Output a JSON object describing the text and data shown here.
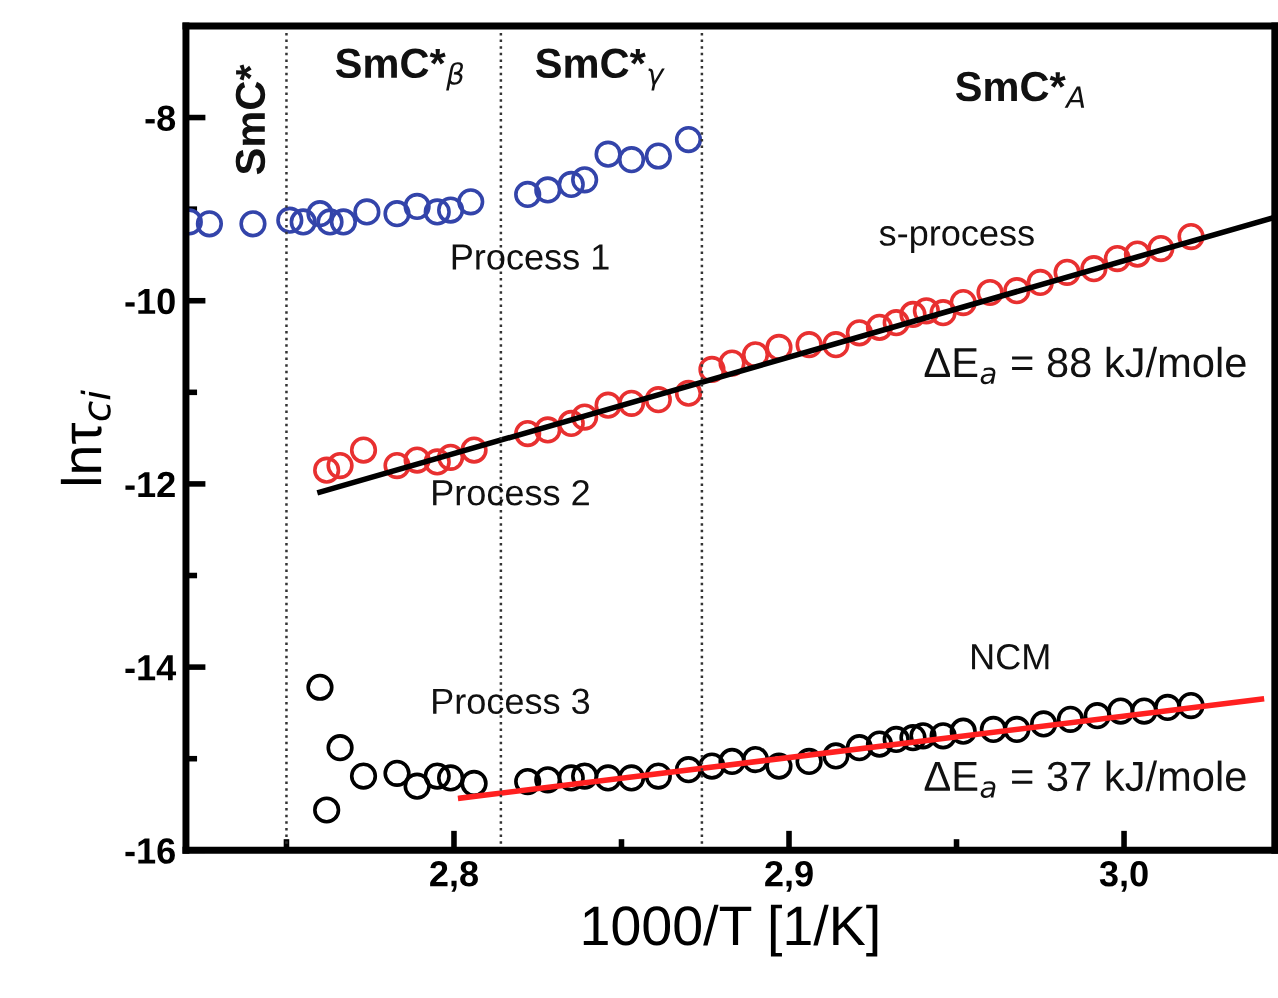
{
  "chart_data": {
    "type": "scatter",
    "xlabel": "1000/T [1/K]",
    "ylabel": "lnτ$_{ci}$",
    "xlim": [
      2.72,
      3.045
    ],
    "ylim": [
      -16,
      -7
    ],
    "xticks": [
      {
        "value": 2.8,
        "label": "2,8"
      },
      {
        "value": 2.9,
        "label": "2,9"
      },
      {
        "value": 3.0,
        "label": "3,0"
      }
    ],
    "yticks": [
      -16,
      -14,
      -12,
      -10,
      -8
    ],
    "grid": false,
    "legend": false,
    "marker": "circle",
    "ref_lines": [
      {
        "axis": "x",
        "value": 2.75,
        "color": "#333333",
        "line_style": "dotted"
      },
      {
        "axis": "x",
        "value": 2.814,
        "color": "#333333",
        "line_style": "dotted"
      },
      {
        "axis": "x",
        "value": 2.874,
        "color": "#333333",
        "line_style": "dotted"
      }
    ],
    "series": [
      {
        "color": "#3344aa",
        "x": [
          2.721,
          2.727,
          2.74,
          2.751,
          2.755,
          2.76,
          2.763,
          2.767,
          2.774,
          2.783,
          2.789,
          2.795,
          2.799,
          2.805,
          2.822,
          2.828,
          2.835,
          2.839,
          2.846,
          2.853,
          2.861,
          2.87
        ],
        "values": [
          -9.14,
          -9.16,
          -9.16,
          -9.12,
          -9.14,
          -9.05,
          -9.14,
          -9.14,
          -9.03,
          -9.05,
          -8.97,
          -9.03,
          -9.01,
          -8.92,
          -8.84,
          -8.79,
          -8.73,
          -8.68,
          -8.4,
          -8.46,
          -8.42,
          -8.24
        ]
      },
      {
        "color": "#e83030",
        "x": [
          2.762,
          2.766,
          2.773,
          2.783,
          2.789,
          2.795,
          2.799,
          2.806,
          2.822,
          2.828,
          2.835,
          2.839,
          2.846,
          2.853,
          2.861,
          2.87,
          2.877,
          2.883,
          2.89,
          2.897,
          2.906,
          2.914,
          2.921,
          2.927,
          2.932,
          2.937,
          2.941,
          2.946,
          2.952,
          2.96,
          2.968,
          2.975,
          2.983,
          2.991,
          2.998,
          3.004,
          3.011,
          3.02
        ],
        "values": [
          -11.85,
          -11.8,
          -11.63,
          -11.8,
          -11.74,
          -11.76,
          -11.71,
          -11.63,
          -11.45,
          -11.41,
          -11.34,
          -11.27,
          -11.14,
          -11.12,
          -11.08,
          -11.01,
          -10.75,
          -10.68,
          -10.59,
          -10.51,
          -10.48,
          -10.48,
          -10.35,
          -10.29,
          -10.24,
          -10.15,
          -10.11,
          -10.13,
          -10.02,
          -9.91,
          -9.89,
          -9.8,
          -9.69,
          -9.65,
          -9.54,
          -9.49,
          -9.43,
          -9.3
        ]
      },
      {
        "color": "#000000",
        "x": [
          2.76,
          2.762,
          2.766,
          2.773,
          2.783,
          2.789,
          2.795,
          2.799,
          2.806,
          2.822,
          2.828,
          2.835,
          2.839,
          2.846,
          2.853,
          2.861,
          2.87,
          2.877,
          2.883,
          2.89,
          2.897,
          2.906,
          2.914,
          2.921,
          2.927,
          2.932,
          2.937,
          2.94,
          2.946,
          2.952,
          2.961,
          2.968,
          2.976,
          2.984,
          2.992,
          2.999,
          3.006,
          3.013,
          3.02
        ],
        "values": [
          -14.22,
          -15.56,
          -14.88,
          -15.19,
          -15.16,
          -15.3,
          -15.19,
          -15.21,
          -15.27,
          -15.25,
          -15.23,
          -15.21,
          -15.19,
          -15.21,
          -15.21,
          -15.19,
          -15.12,
          -15.08,
          -15.03,
          -15.01,
          -15.08,
          -15.03,
          -14.97,
          -14.88,
          -14.84,
          -14.79,
          -14.77,
          -14.75,
          -14.75,
          -14.7,
          -14.68,
          -14.68,
          -14.62,
          -14.57,
          -14.53,
          -14.48,
          -14.48,
          -14.44,
          -14.42
        ]
      },
      {
        "type": "line",
        "color": "#000000",
        "marker": "none",
        "x": [
          2.76,
          3.044
        ],
        "values": [
          -12.09,
          -9.1
        ]
      },
      {
        "type": "line",
        "color": "#ff2020",
        "marker": "none",
        "x": [
          2.802,
          3.041
        ],
        "values": [
          -15.43,
          -14.35
        ]
      }
    ],
    "annotations": [
      "SmC*",
      "SmC*$_{β}$",
      "SmC*$_{γ}$",
      "SmC*$_{A}$",
      "Process 1",
      "s-process",
      "ΔE$_{a}$ = 88 kJ/mole",
      "Process 2",
      "Process 3",
      "NCM",
      "ΔE$_{a}$ = 37 kJ/mole"
    ]
  }
}
